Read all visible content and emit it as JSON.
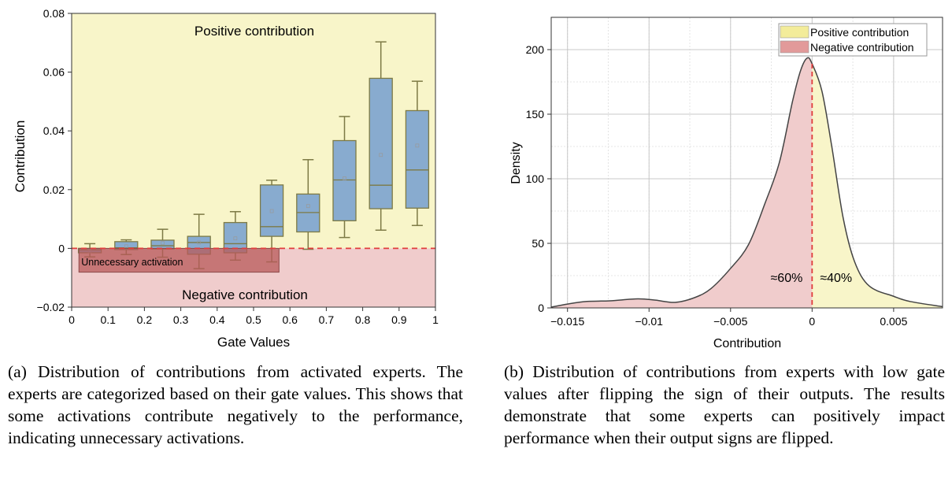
{
  "chart_data": [
    {
      "type": "box",
      "xlabel": "Gate Values",
      "ylabel": "Contribution",
      "xlim": [
        0,
        1
      ],
      "ylim": [
        -0.02,
        0.08
      ],
      "xticks": [
        "0",
        "0.1",
        "0.2",
        "0.3",
        "0.4",
        "0.5",
        "0.6",
        "0.7",
        "0.8",
        "0.9",
        "1"
      ],
      "yticks": [
        "−0.02",
        "0",
        "0.02",
        "0.04",
        "0.06",
        "0.08"
      ],
      "annotations": {
        "positive": "Positive contribution",
        "negative": "Negative contribution",
        "unnecessary": "Unnecessary activation"
      },
      "colors": {
        "positive_bg": "#f8f5c9",
        "negative_bg": "#f0cccc",
        "box": "#88abcf",
        "box_edge": "#7d7a45",
        "unnecessary": "#b85a5a",
        "zero_line": "#e03c3c"
      },
      "boxes": [
        {
          "x": 0.05,
          "whisker_low": -0.0029,
          "q1": -0.0015,
          "median": -0.0005,
          "q3": 0.0,
          "whisker_high": 0.0016,
          "mean": -0.001
        },
        {
          "x": 0.15,
          "whisker_low": -0.0021,
          "q1": -0.0004,
          "median": 0.0002,
          "q3": 0.0023,
          "whisker_high": 0.0029,
          "mean": 0.0007
        },
        {
          "x": 0.25,
          "whisker_low": -0.003,
          "q1": -0.0002,
          "median": 0.0009,
          "q3": 0.0028,
          "whisker_high": 0.0065,
          "mean": 0.0018
        },
        {
          "x": 0.35,
          "whisker_low": -0.0069,
          "q1": -0.002,
          "median": 0.002,
          "q3": 0.0041,
          "whisker_high": 0.0116,
          "mean": 0.002
        },
        {
          "x": 0.45,
          "whisker_low": -0.004,
          "q1": -0.0015,
          "median": 0.0016,
          "q3": 0.0088,
          "whisker_high": 0.0125,
          "mean": 0.0034
        },
        {
          "x": 0.55,
          "whisker_low": -0.0046,
          "q1": 0.0041,
          "median": 0.0074,
          "q3": 0.0216,
          "whisker_high": 0.0232,
          "mean": 0.0127
        },
        {
          "x": 0.65,
          "whisker_low": -0.0003,
          "q1": 0.0056,
          "median": 0.0122,
          "q3": 0.0185,
          "whisker_high": 0.0302,
          "mean": 0.0144
        },
        {
          "x": 0.75,
          "whisker_low": 0.0037,
          "q1": 0.0094,
          "median": 0.0233,
          "q3": 0.0367,
          "whisker_high": 0.0449,
          "mean": 0.0238
        },
        {
          "x": 0.85,
          "whisker_low": 0.0062,
          "q1": 0.0135,
          "median": 0.0215,
          "q3": 0.0579,
          "whisker_high": 0.0703,
          "mean": 0.0318
        },
        {
          "x": 0.95,
          "whisker_low": 0.0078,
          "q1": 0.0137,
          "median": 0.0267,
          "q3": 0.0469,
          "whisker_high": 0.0569,
          "mean": 0.035
        }
      ]
    },
    {
      "type": "area",
      "xlabel": "Contribution",
      "ylabel": "Density",
      "xlim": [
        -0.016,
        0.008
      ],
      "ylim": [
        0,
        225
      ],
      "xticks": [
        "−0.015",
        "−0.01",
        "−0.005",
        "0",
        "0.005"
      ],
      "yticks": [
        "0",
        "50",
        "100",
        "150",
        "200"
      ],
      "grid": true,
      "legend_position": "top-right",
      "legend": [
        {
          "name": "Positive contribution",
          "color": "#f3ec9a"
        },
        {
          "name": "Negative contribution",
          "color": "#e29a9a"
        }
      ],
      "annotations": {
        "left": "≈60%",
        "right": "≈40%"
      },
      "x": [
        -0.016,
        -0.015,
        -0.0138,
        -0.0124,
        -0.0107,
        -0.0096,
        -0.0084,
        -0.0072,
        -0.0062,
        -0.005,
        -0.0039,
        -0.0029,
        -0.002,
        -0.0012,
        -0.0007,
        -0.0003,
        0,
        0.0006,
        0.0012,
        0.0019,
        0.0026,
        0.0035,
        0.005,
        0.006,
        0.008
      ],
      "y": [
        0.6,
        3,
        5,
        5.5,
        7,
        6,
        4.3,
        8,
        15,
        30.6,
        49,
        80.6,
        113,
        160,
        184,
        193.5,
        189,
        168,
        125.5,
        70,
        36,
        17,
        9,
        5,
        1
      ]
    }
  ],
  "captions": {
    "a": "(a) Distribution of contributions from activated experts. The experts are categorized based on their gate values. This shows that some activations contribute negatively to the performance, indicating unnecessary activations.",
    "b": "(b) Distribution of contributions from experts with low gate values after flipping the sign of their outputs. The results demonstrate that some experts can positively impact performance when their output signs are flipped."
  }
}
